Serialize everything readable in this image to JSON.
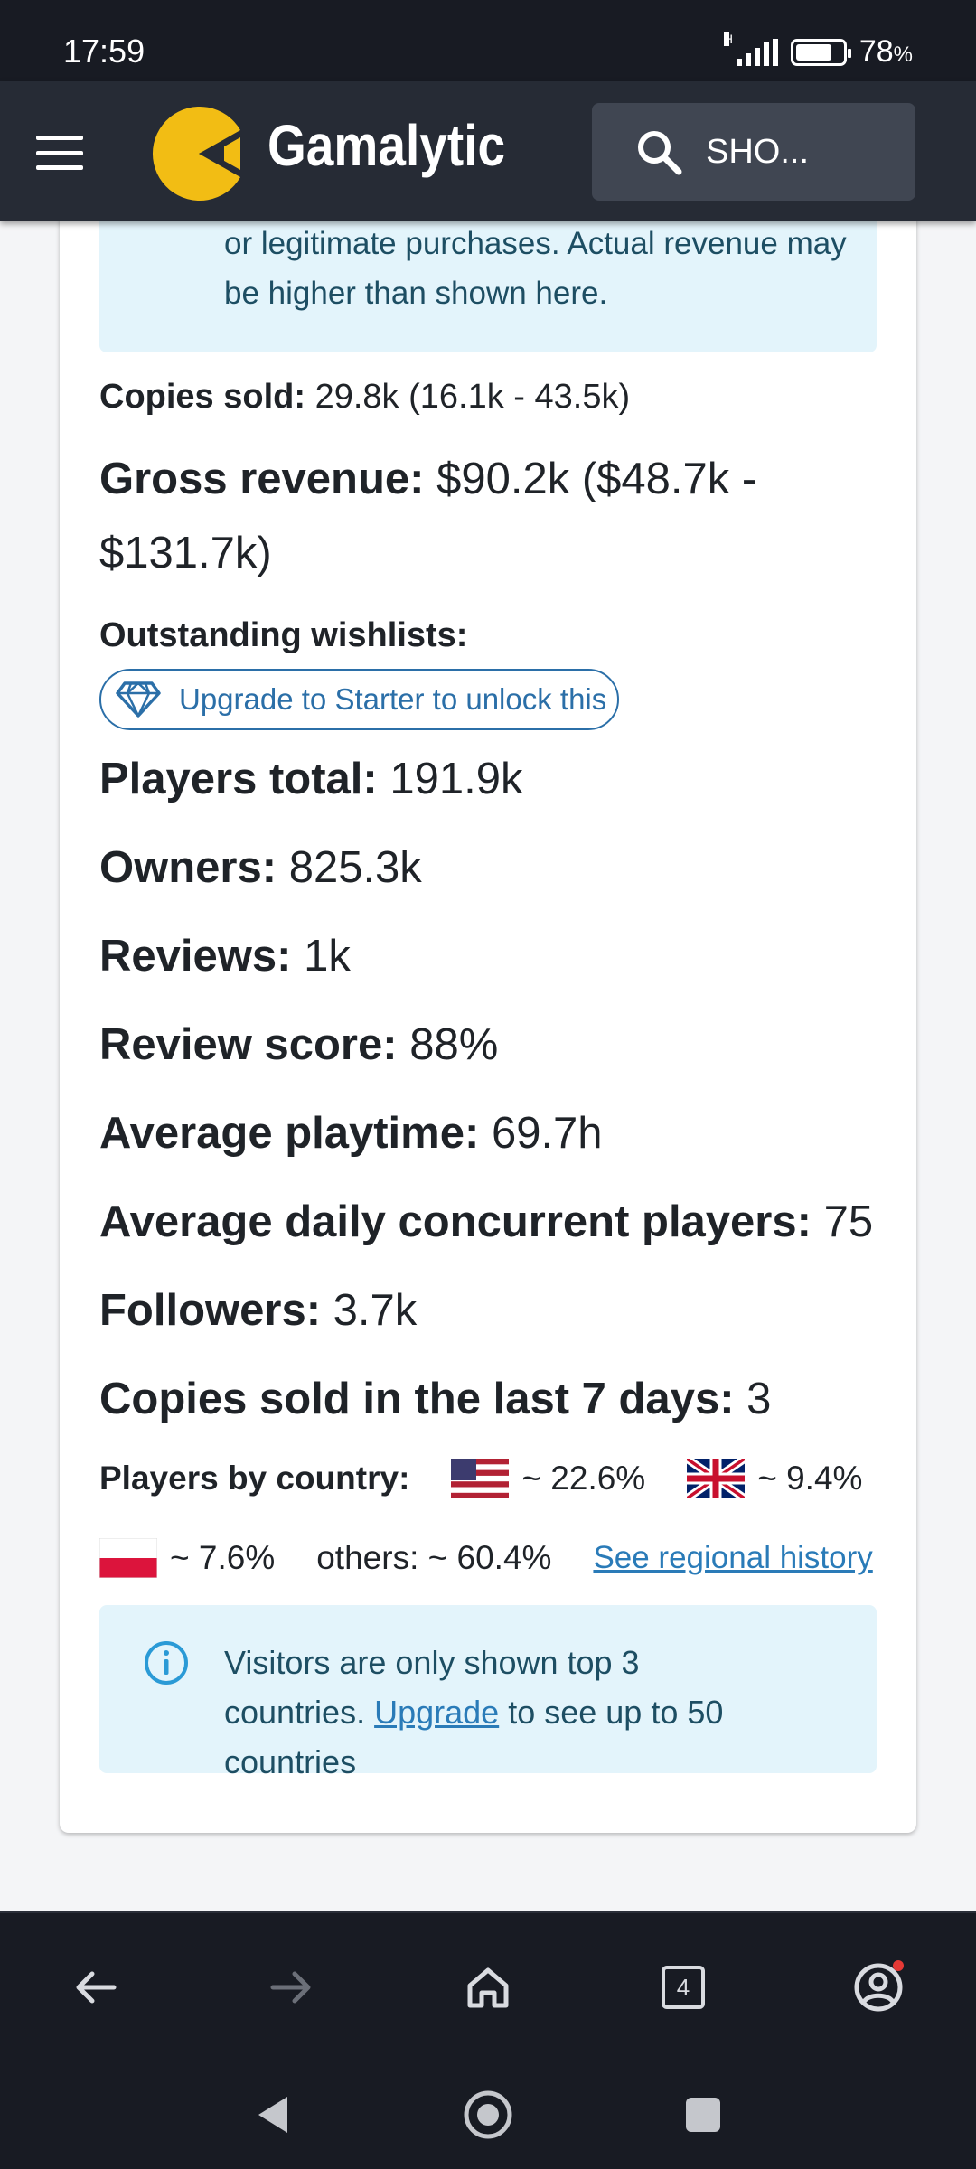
{
  "status_bar": {
    "time": "17:59",
    "network": "H",
    "battery": "78",
    "battery_unit": "%"
  },
  "header": {
    "brand": "Gamalytic",
    "search_text": "SHO..."
  },
  "notice_top": {
    "text": "or legitimate purchases. Actual revenue may be higher than shown here."
  },
  "stats": {
    "copies_sold": {
      "label": "Copies sold:",
      "value": "29.8k (16.1k - 43.5k)"
    },
    "gross_revenue": {
      "label": "Gross revenue:",
      "value_line1": "$90.2k ($48.7k -",
      "value_line2": "$131.7k)"
    },
    "wishlists": {
      "label": "Outstanding wishlists:",
      "upgrade_label": "Upgrade to Starter to unlock this"
    },
    "players_total": {
      "label": "Players total:",
      "value": "191.9k"
    },
    "owners": {
      "label": "Owners:",
      "value": "825.3k"
    },
    "reviews": {
      "label": "Reviews:",
      "value": "1k"
    },
    "review_score": {
      "label": "Review score:",
      "value": "88%"
    },
    "avg_playtime": {
      "label": "Average playtime:",
      "value": "69.7h"
    },
    "avg_ccu": {
      "label": "Average daily concurrent players:",
      "value": "75"
    },
    "followers": {
      "label": "Followers:",
      "value": "3.7k"
    },
    "copies_7d": {
      "label": "Copies sold in the last 7 days:",
      "value": "3"
    }
  },
  "countries": {
    "label": "Players by country:",
    "items": [
      {
        "flag": "us-flag-icon",
        "value": "~ 22.6%"
      },
      {
        "flag": "uk-flag-icon",
        "value": "~ 9.4%"
      },
      {
        "flag": "pl-flag-icon",
        "value": "~ 7.6%"
      }
    ],
    "others": "others: ~ 60.4%",
    "link": "See regional history"
  },
  "notice_bottom": {
    "line1": "Visitors are only shown top 3",
    "pre": "countries.",
    "link": "Upgrade",
    "post": "to see up to 50 countries"
  },
  "browser_bar": {
    "tab_count": "4"
  },
  "colors": {
    "brand_yellow": "#f2bd14",
    "header_bg": "#262b35",
    "link": "#2a7bb8",
    "notice_bg": "#e3f4fb"
  }
}
